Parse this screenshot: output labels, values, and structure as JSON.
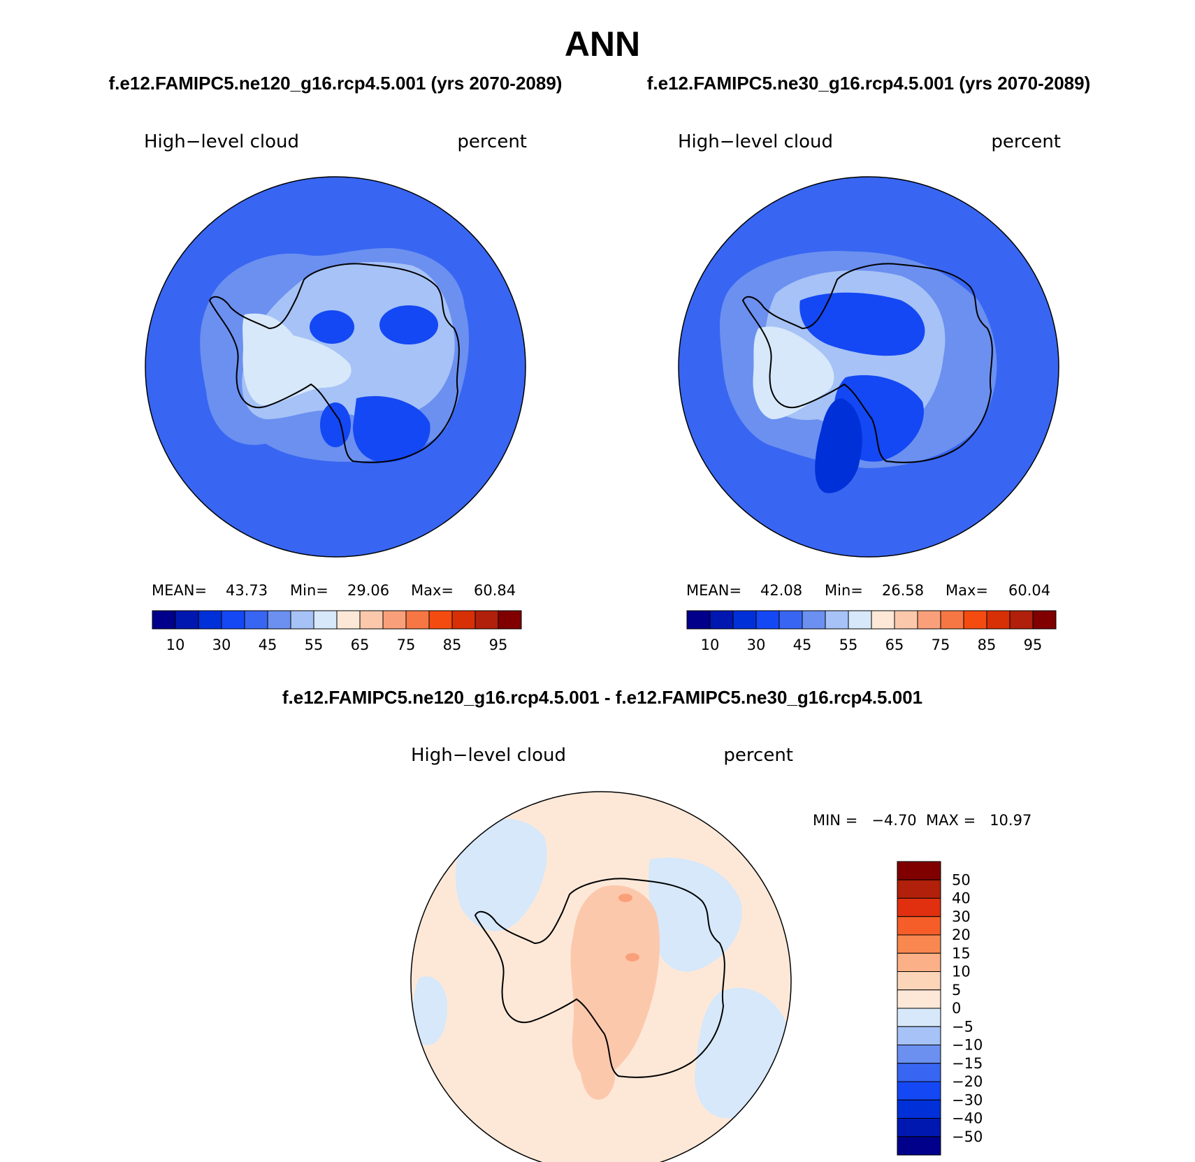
{
  "title": "ANN",
  "panels": [
    {
      "case": "f.e12.FAMIPC5.ne120_g16.rcp4.5.001 (yrs 2070-2089)",
      "variable": "High−level cloud",
      "units": "percent",
      "stats": {
        "mean_label": "MEAN=",
        "mean": "43.73",
        "min_label": "Min=",
        "min": "29.06",
        "max_label": "Max=",
        "max": "60.84"
      }
    },
    {
      "case": "f.e12.FAMIPC5.ne30_g16.rcp4.5.001 (yrs 2070-2089)",
      "variable": "High−level cloud",
      "units": "percent",
      "stats": {
        "mean_label": "MEAN=",
        "mean": "42.08",
        "min_label": "Min=",
        "min": "26.58",
        "max_label": "Max=",
        "max": "60.04"
      }
    }
  ],
  "diff": {
    "case": "f.e12.FAMIPC5.ne120_g16.rcp4.5.001 - f.e12.FAMIPC5.ne30_g16.rcp4.5.001",
    "variable": "High−level cloud",
    "units": "percent",
    "stats_text": "MIN =   −4.70  MAX =   10.97"
  },
  "colorbar_main": {
    "colors": [
      "#00008b",
      "#0018b0",
      "#0030d8",
      "#1448f4",
      "#3866f2",
      "#6b90f0",
      "#a6c2f6",
      "#d6e8fa",
      "#fde8d8",
      "#fcc8ac",
      "#f9a07a",
      "#f77744",
      "#f44c10",
      "#d83006",
      "#b0200a",
      "#800000"
    ],
    "ticks": [
      "10",
      "30",
      "45",
      "55",
      "65",
      "75",
      "85",
      "95"
    ]
  },
  "colorbar_diff": {
    "colors": [
      "#800000",
      "#b0200a",
      "#e03010",
      "#f55e28",
      "#f88850",
      "#fbb088",
      "#fcd4b8",
      "#fde8d8",
      "#d6e8fa",
      "#a6c2f6",
      "#6b90f0",
      "#3866f2",
      "#1448f4",
      "#0030d8",
      "#0018b0",
      "#00008b"
    ],
    "ticks": [
      "50",
      "40",
      "30",
      "20",
      "15",
      "10",
      "5",
      "0",
      "−5",
      "−10",
      "−15",
      "−20",
      "−30",
      "−40",
      "−50"
    ]
  },
  "map_colors": {
    "panel1": {
      "ocean": "#3866f2",
      "ring": "#6b90f0",
      "inner": "#a6c2f6",
      "light": "#d6e8fa",
      "dark": "#1448f4",
      "darker": "#0030d8"
    },
    "panel2": {
      "ocean": "#3866f2",
      "ring": "#6b90f0",
      "inner": "#a6c2f6",
      "light": "#d6e8fa",
      "dark": "#1448f4",
      "darker": "#0030d8"
    },
    "diff": {
      "background": "#fde8d8",
      "positive": "#fcc8ac",
      "stronger": "#f9a07a",
      "negative": "#d6e8fa"
    }
  }
}
